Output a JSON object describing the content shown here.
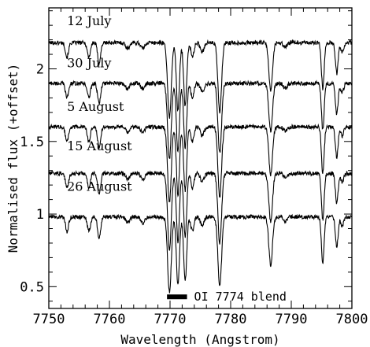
{
  "chart_data": {
    "type": "line",
    "xlabel": "Wavelength (Angstrom)",
    "ylabel": "Normalised flux (+offset)",
    "xlim": [
      7750,
      7800
    ],
    "ylim": [
      0.35,
      2.42
    ],
    "x_ticks": [
      7750,
      7760,
      7770,
      7780,
      7790,
      7800
    ],
    "y_ticks": [
      0.5,
      1,
      1.5,
      2
    ],
    "x_tick_labels": [
      "7750",
      "7760",
      "7770",
      "7780",
      "7790",
      "7800"
    ],
    "y_tick_labels": [
      "0.5",
      "1",
      "1.5",
      "2"
    ],
    "series": [
      {
        "name": "12 July",
        "offset": 2.18,
        "label_x": 7753,
        "label_y": 2.3
      },
      {
        "name": "30 July",
        "offset": 1.9,
        "label_x": 7753,
        "label_y": 2.01
      },
      {
        "name": "5 August",
        "offset": 1.6,
        "label_x": 7753,
        "label_y": 1.71
      },
      {
        "name": "15 August",
        "offset": 1.28,
        "label_x": 7753,
        "label_y": 1.44
      },
      {
        "name": "26 August",
        "offset": 0.98,
        "label_x": 7753,
        "label_y": 1.16
      }
    ],
    "absorption_lines": [
      {
        "center": 7753.0,
        "depth": 0.1,
        "width": 0.25
      },
      {
        "center": 7756.6,
        "depth": 0.1,
        "width": 0.25
      },
      {
        "center": 7758.3,
        "depth": 0.14,
        "width": 0.25
      },
      {
        "center": 7763.0,
        "depth": 0.04,
        "width": 0.3
      },
      {
        "center": 7765.5,
        "depth": 0.04,
        "width": 0.3
      },
      {
        "center": 7769.9,
        "depth": 0.52,
        "width": 0.3
      },
      {
        "center": 7771.3,
        "depth": 0.47,
        "width": 0.25
      },
      {
        "center": 7772.5,
        "depth": 0.44,
        "width": 0.25
      },
      {
        "center": 7773.7,
        "depth": 0.1,
        "width": 0.25
      },
      {
        "center": 7775.3,
        "depth": 0.06,
        "width": 0.3
      },
      {
        "center": 7778.2,
        "depth": 0.48,
        "width": 0.3
      },
      {
        "center": 7786.6,
        "depth": 0.33,
        "width": 0.3
      },
      {
        "center": 7789.0,
        "depth": 0.03,
        "width": 0.3
      },
      {
        "center": 7795.2,
        "depth": 0.32,
        "width": 0.22
      },
      {
        "center": 7797.5,
        "depth": 0.21,
        "width": 0.22
      },
      {
        "center": 7798.4,
        "depth": 0.06,
        "width": 0.25
      }
    ],
    "annotation": {
      "text": "OI 7774 blend",
      "bar_x": [
        7769.5,
        7772.8
      ],
      "y": 0.43
    }
  }
}
